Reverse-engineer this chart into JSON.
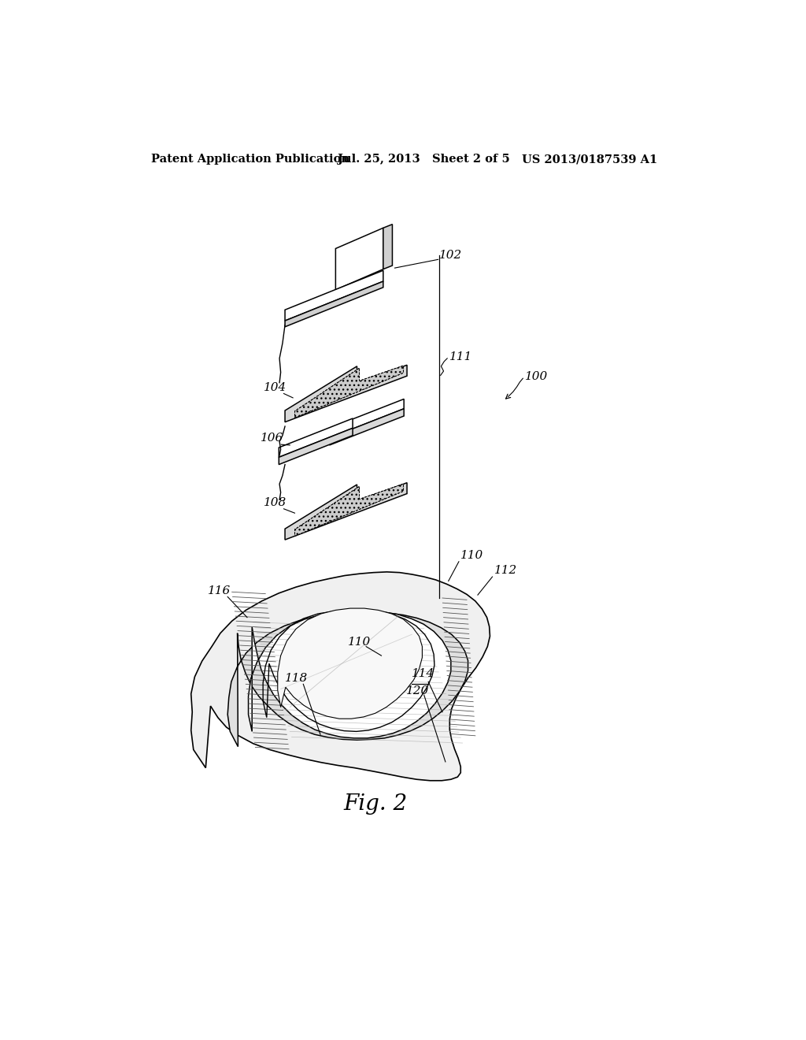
{
  "header_left": "Patent Application Publication",
  "header_center": "Jul. 25, 2013   Sheet 2 of 5",
  "header_right": "US 2013/0187539 A1",
  "fig_label": "Fig. 2",
  "bg_color": "#ffffff",
  "line_color": "#000000"
}
